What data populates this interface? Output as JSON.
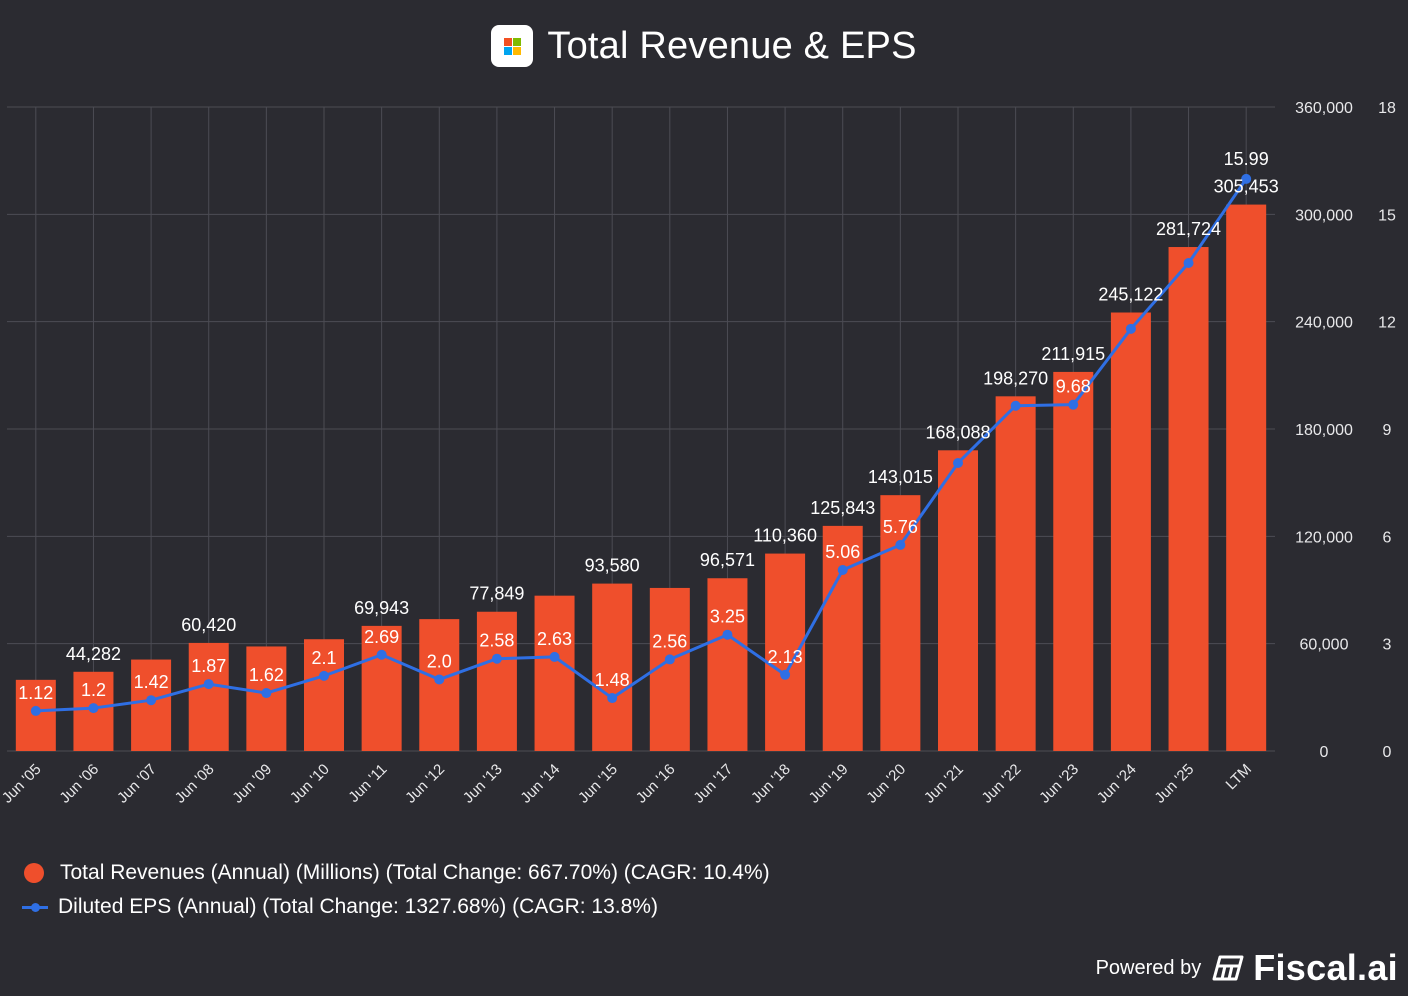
{
  "header": {
    "title": "Total Revenue & EPS"
  },
  "colors": {
    "background": "#2b2b31",
    "revenue_bar": "#ef4f2c",
    "eps_line": "#2f6fe4",
    "grid": "#4c4c54",
    "text": "#ffffff",
    "axis_text": "#e8e8ea",
    "logo_red": "#f25022",
    "logo_green": "#7fba00",
    "logo_blue": "#00a4ef",
    "logo_yellow": "#ffb900"
  },
  "legend": {
    "revenue": "Total Revenues (Annual) (Millions) (Total Change: 667.70%) (CAGR: 10.4%)",
    "eps": "Diluted EPS (Annual) (Total Change: 1327.68%) (CAGR: 13.8%)"
  },
  "footer": {
    "powered_by": "Powered by",
    "brand": "Fiscal.ai"
  },
  "chart_data": {
    "type": "bar",
    "categories": [
      "Jun '05",
      "Jun '06",
      "Jun '07",
      "Jun '08",
      "Jun '09",
      "Jun '10",
      "Jun '11",
      "Jun '12",
      "Jun '13",
      "Jun '14",
      "Jun '15",
      "Jun '16",
      "Jun '17",
      "Jun '18",
      "Jun '19",
      "Jun '20",
      "Jun '21",
      "Jun '22",
      "Jun '23",
      "Jun '24",
      "Jun '25",
      "LTM"
    ],
    "series": [
      {
        "name": "Total Revenues (Annual) (Millions)",
        "type": "bar",
        "axis": "left",
        "values": [
          39788,
          44282,
          51122,
          60420,
          58437,
          62484,
          69943,
          73723,
          77849,
          86833,
          93580,
          91154,
          96571,
          110360,
          125843,
          143015,
          168088,
          198270,
          211915,
          245122,
          281724,
          305453
        ],
        "labels": [
          "",
          "44,282",
          "",
          "60,420",
          "",
          "",
          "69,943",
          "",
          "77,849",
          "",
          "93,580",
          "",
          "96,571",
          "110,360",
          "125,843",
          "143,015",
          "168,088",
          "198,270",
          "211,915",
          "245,122",
          "281,724",
          "305,453"
        ]
      },
      {
        "name": "Diluted EPS (Annual)",
        "type": "line",
        "axis": "right",
        "values": [
          1.12,
          1.2,
          1.42,
          1.87,
          1.62,
          2.1,
          2.69,
          2.0,
          2.58,
          2.63,
          1.48,
          2.56,
          3.25,
          2.13,
          5.06,
          5.76,
          8.05,
          9.65,
          9.68,
          11.8,
          13.64,
          15.99
        ],
        "labels": [
          "1.12",
          "1.2",
          "1.42",
          "1.87",
          "1.62",
          "2.1",
          "2.69",
          "2.0",
          "2.58",
          "2.63",
          "1.48",
          "2.56",
          "3.25",
          "2.13",
          "5.06",
          "5.76",
          "",
          "",
          "9.68",
          "",
          "",
          "15.99"
        ]
      }
    ],
    "y_left": {
      "ticks": [
        "0",
        "60,000",
        "120,000",
        "180,000",
        "240,000",
        "300,000",
        "360,000"
      ],
      "ylim": [
        0,
        360000
      ]
    },
    "y_right": {
      "ticks": [
        "0",
        "3",
        "6",
        "9",
        "12",
        "15",
        "18"
      ],
      "ylim": [
        0,
        18
      ]
    },
    "grid": true
  }
}
